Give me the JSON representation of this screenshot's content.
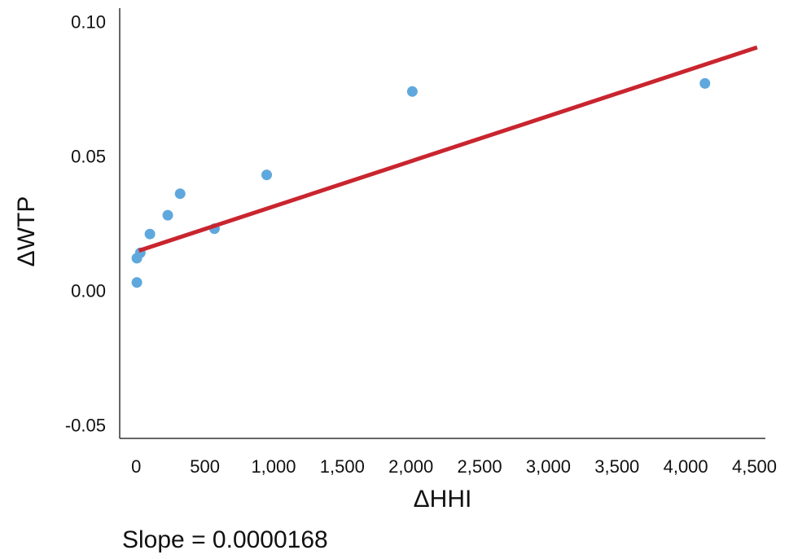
{
  "chart_data": {
    "type": "scatter",
    "xlabel": "ΔHHI",
    "ylabel": "ΔWTP",
    "xlim": [
      -120,
      4580
    ],
    "ylim": [
      -0.055,
      0.105
    ],
    "x_ticks": [
      0,
      500,
      1000,
      1500,
      2000,
      2500,
      3000,
      3500,
      4000,
      4500
    ],
    "x_tick_labels": [
      "0",
      "500",
      "1,000",
      "1,500",
      "2,000",
      "2,500",
      "3,000",
      "3,500",
      "4,000",
      "4,500"
    ],
    "y_ticks": [
      0.1,
      0.05,
      0.0,
      -0.05
    ],
    "y_tick_labels": [
      "0.10",
      "0.05",
      "0.00",
      "-0.05"
    ],
    "grid": false,
    "legend": "none",
    "points": [
      {
        "x": 5,
        "y": 0.003
      },
      {
        "x": 5,
        "y": 0.012
      },
      {
        "x": 30,
        "y": 0.014
      },
      {
        "x": 100,
        "y": 0.021
      },
      {
        "x": 230,
        "y": 0.028
      },
      {
        "x": 320,
        "y": 0.036
      },
      {
        "x": 570,
        "y": 0.023
      },
      {
        "x": 950,
        "y": 0.043
      },
      {
        "x": 2010,
        "y": 0.074
      },
      {
        "x": 4140,
        "y": 0.077
      }
    ],
    "fit_line": {
      "x": [
        20,
        4520
      ],
      "y": [
        0.0148,
        0.0904
      ]
    },
    "annotation": "Slope = 0.0000168",
    "colors": {
      "points": "#5fa8de",
      "fit_line": "#c9252f",
      "axis": "#333333"
    }
  }
}
